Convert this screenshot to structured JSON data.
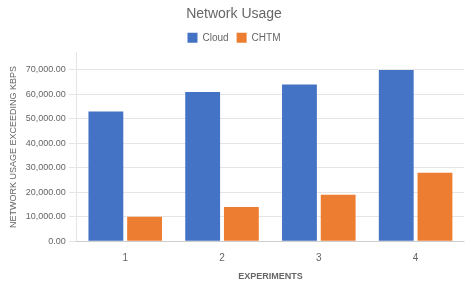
{
  "chart_data": {
    "type": "bar",
    "title": "Network Usage",
    "xlabel": "EXPERIMENTS",
    "ylabel": "NETWORK USAGE EXCEEDING KBPS",
    "categories": [
      "1",
      "2",
      "3",
      "4"
    ],
    "series": [
      {
        "name": "Cloud",
        "color": "#4472C4",
        "values": [
          53000,
          61000,
          64000,
          70000
        ]
      },
      {
        "name": "CHTM",
        "color": "#ED7D31",
        "values": [
          10000,
          14000,
          19000,
          28000
        ]
      }
    ],
    "ylim": [
      0,
      77000
    ],
    "yticks": [
      {
        "value": 0,
        "label": "0.00"
      },
      {
        "value": 10000,
        "label": "10,000.00"
      },
      {
        "value": 20000,
        "label": "20,000.00"
      },
      {
        "value": 30000,
        "label": "30,000.00"
      },
      {
        "value": 40000,
        "label": "40,000.00"
      },
      {
        "value": 50000,
        "label": "50,000.00"
      },
      {
        "value": 60000,
        "label": "60,000.00"
      },
      {
        "value": 70000,
        "label": "70,000.00"
      }
    ],
    "grid": true,
    "legend": "top"
  }
}
